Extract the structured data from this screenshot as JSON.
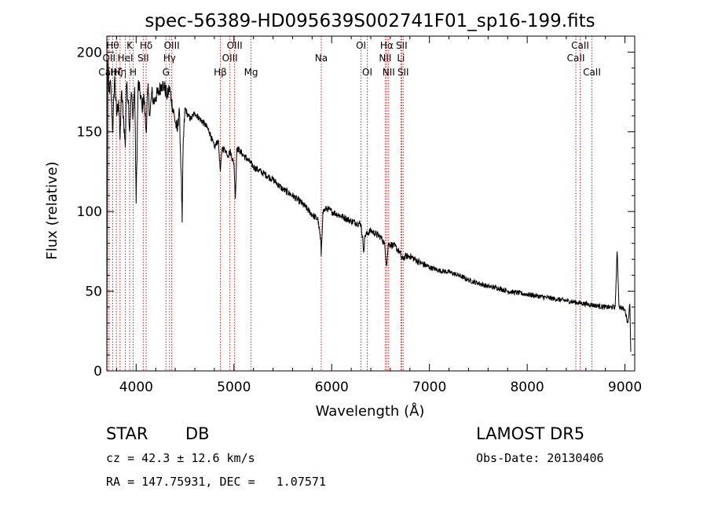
{
  "chart_data": {
    "type": "line",
    "title": "spec-56389-HD095639S002741F01_sp16-199.fits",
    "xlabel": "Wavelength (Å)",
    "ylabel": "Flux (relative)",
    "xlim": [
      3700,
      9100
    ],
    "ylim": [
      0,
      210
    ],
    "xticks": [
      4000,
      5000,
      6000,
      7000,
      8000,
      9000
    ],
    "yticks": [
      0,
      50,
      100,
      150,
      200
    ],
    "xtick_labels": [
      "4000",
      "5000",
      "6000",
      "7000",
      "8000",
      "9000"
    ],
    "ytick_labels": [
      "0",
      "50",
      "100",
      "150",
      "200"
    ],
    "grid": false,
    "line_color": "#000000",
    "marker_line_color": "#cc2222",
    "spectrum": {
      "x": [
        3700,
        3710,
        3720,
        3740,
        3760,
        3780,
        3800,
        3820,
        3835,
        3850,
        3870,
        3889,
        3900,
        3920,
        3933,
        3950,
        3968,
        3985,
        4000,
        4020,
        4040,
        4060,
        4080,
        4102,
        4120,
        4140,
        4160,
        4180,
        4200,
        4230,
        4260,
        4290,
        4320,
        4340,
        4360,
        4390,
        4420,
        4440,
        4460,
        4471,
        4480,
        4500,
        4530,
        4560,
        4600,
        4650,
        4700,
        4750,
        4800,
        4840,
        4861,
        4880,
        4920,
        4940,
        4960,
        5000,
        5015,
        5030,
        5060,
        5100,
        5150,
        5200,
        5300,
        5400,
        5500,
        5600,
        5700,
        5800,
        5860,
        5890,
        5893,
        5910,
        5950,
        6000,
        6100,
        6200,
        6300,
        6330,
        6340,
        6400,
        6500,
        6540,
        6563,
        6580,
        6650,
        6700,
        6720,
        6760,
        6800,
        6900,
        7000,
        7100,
        7200,
        7300,
        7400,
        7500,
        7600,
        7700,
        7800,
        7900,
        8000,
        8100,
        8200,
        8300,
        8400,
        8500,
        8600,
        8700,
        8800,
        8850,
        8900,
        8920,
        8940,
        8960,
        9000,
        9030,
        9050,
        9060
      ],
      "y": [
        10,
        195,
        175,
        180,
        150,
        185,
        160,
        170,
        145,
        175,
        160,
        140,
        180,
        170,
        150,
        175,
        160,
        178,
        105,
        180,
        175,
        165,
        172,
        150,
        178,
        160,
        175,
        168,
        172,
        175,
        180,
        178,
        172,
        178,
        170,
        160,
        150,
        165,
        125,
        93,
        140,
        165,
        160,
        158,
        162,
        158,
        155,
        150,
        140,
        145,
        125,
        140,
        138,
        135,
        138,
        130,
        108,
        140,
        138,
        135,
        132,
        128,
        124,
        120,
        114,
        110,
        105,
        98,
        95,
        80,
        72,
        100,
        102,
        100,
        97,
        94,
        92,
        75,
        85,
        88,
        84,
        80,
        66,
        80,
        78,
        74,
        70,
        72,
        72,
        68,
        65,
        63,
        62,
        60,
        57,
        55,
        53,
        52,
        50,
        49,
        48,
        47,
        46,
        45,
        44,
        43,
        42,
        41,
        40,
        40,
        40,
        75,
        40,
        40,
        38,
        30,
        42,
        12
      ]
    },
    "line_markers": [
      {
        "x": 3705,
        "label": "CaII",
        "row": 3
      },
      {
        "x": 3722,
        "label": "OII",
        "row": 2
      },
      {
        "x": 3760,
        "label": "Hθ",
        "row": 1
      },
      {
        "x": 3797,
        "label": "Hζ",
        "row": 3
      },
      {
        "x": 3835,
        "label": "Hη",
        "row": 3
      },
      {
        "x": 3889,
        "label": "HeI",
        "row": 2
      },
      {
        "x": 3934,
        "label": "K",
        "row": 1
      },
      {
        "x": 3969,
        "label": "H",
        "row": 3
      },
      {
        "x": 4072,
        "label": "SII",
        "row": 2
      },
      {
        "x": 4102,
        "label": "Hδ",
        "row": 1
      },
      {
        "x": 4305,
        "label": "G",
        "row": 3
      },
      {
        "x": 4341,
        "label": "Hγ",
        "row": 2
      },
      {
        "x": 4364,
        "label": "OIII",
        "row": 1
      },
      {
        "x": 4861,
        "label": "Hβ",
        "row": 3
      },
      {
        "x": 4959,
        "label": "OIII",
        "row": 2
      },
      {
        "x": 5007,
        "label": "OIII",
        "row": 1
      },
      {
        "x": 5175,
        "label": "Mg",
        "row": 3
      },
      {
        "x": 5893,
        "label": "Na",
        "row": 2
      },
      {
        "x": 6300,
        "label": "OI",
        "row": 1
      },
      {
        "x": 6364,
        "label": "OI",
        "row": 3
      },
      {
        "x": 6548,
        "label": "NII",
        "row": 2
      },
      {
        "x": 6563,
        "label": "Hα",
        "row": 1
      },
      {
        "x": 6583,
        "label": "NII",
        "row": 3
      },
      {
        "x": 6708,
        "label": "Li",
        "row": 2
      },
      {
        "x": 6716,
        "label": "SII",
        "row": 1
      },
      {
        "x": 6731,
        "label": "SII",
        "row": 3
      },
      {
        "x": 8498,
        "label": "CaII",
        "row": 2
      },
      {
        "x": 8542,
        "label": "CaII",
        "row": 1
      },
      {
        "x": 8662,
        "label": "CaII",
        "row": 3
      }
    ]
  },
  "info": {
    "object_class": "STAR",
    "subclass": "DB",
    "survey": "LAMOST DR5",
    "redshift_line": "cz = 42.3 ± 12.6 km/s",
    "obs_date": "Obs-Date: 20130406",
    "coords": "RA = 147.75931, DEC =   1.07571"
  }
}
